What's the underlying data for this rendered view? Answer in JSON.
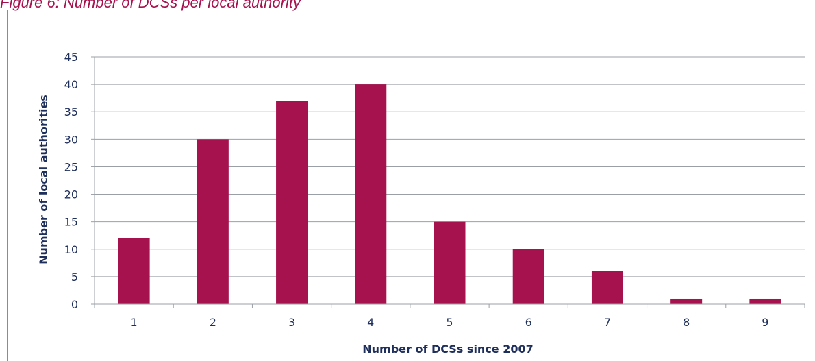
{
  "caption": "Figure 6: Number of DCSs per local authority",
  "chart_data": {
    "type": "bar",
    "categories": [
      "1",
      "2",
      "3",
      "4",
      "5",
      "6",
      "7",
      "8",
      "9"
    ],
    "values": [
      12,
      30,
      37,
      40,
      15,
      10,
      6,
      1,
      1
    ],
    "title": "",
    "xlabel": "Number of DCSs since 2007",
    "ylabel": "Number of local authorities",
    "ylim": [
      0,
      45
    ],
    "yticks": [
      0,
      5,
      10,
      15,
      20,
      25,
      30,
      35,
      40,
      45
    ],
    "grid": true,
    "legend": "none",
    "colors": {
      "bar": "#a6124e",
      "grid": "#9aa0a6",
      "text": "#1f2f5c"
    }
  }
}
